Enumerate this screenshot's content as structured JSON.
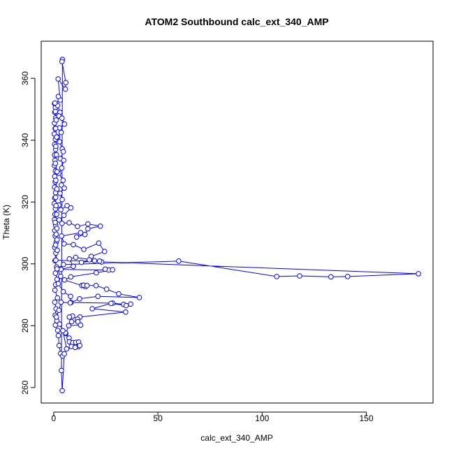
{
  "chart_data": {
    "type": "scatter",
    "title": "ATOM2 Southbound calc_ext_340_AMP",
    "xlabel": "calc_ext_340_AMP",
    "ylabel": "Theta (K)",
    "xlim": [
      -6,
      182
    ],
    "ylim": [
      255,
      372
    ],
    "x_ticks": [
      0,
      50,
      100,
      150
    ],
    "x_tick_labels": [
      "0",
      "50",
      "100",
      "150"
    ],
    "y_ticks": [
      260,
      280,
      300,
      320,
      340,
      360
    ],
    "y_tick_labels": [
      "260",
      "280",
      "300",
      "320",
      "340",
      "360"
    ],
    "grid": false,
    "legend": "none",
    "color": "#0000ff",
    "marker": "open-circle",
    "connected": true,
    "series": [
      {
        "values": [
          [
            0.4,
            351.8
          ],
          [
            0.8,
            350.5
          ],
          [
            0.5,
            349.0
          ],
          [
            0.9,
            347.2
          ],
          [
            0.4,
            345.5
          ],
          [
            0.7,
            343.8
          ],
          [
            0.3,
            342.0
          ],
          [
            0.8,
            340.3
          ],
          [
            0.5,
            338.6
          ],
          [
            0.9,
            337.0
          ],
          [
            0.4,
            335.2
          ],
          [
            0.6,
            333.5
          ],
          [
            0.3,
            331.8
          ],
          [
            0.8,
            330.0
          ],
          [
            0.5,
            328.3
          ],
          [
            0.7,
            326.5
          ],
          [
            0.4,
            324.8
          ],
          [
            0.9,
            323.0
          ],
          [
            0.5,
            321.3
          ],
          [
            0.3,
            319.5
          ],
          [
            0.8,
            317.8
          ],
          [
            0.6,
            316.0
          ],
          [
            0.4,
            314.3
          ],
          [
            0.9,
            312.5
          ],
          [
            0.5,
            310.8
          ],
          [
            0.7,
            309.0
          ],
          [
            1.2,
            307.0
          ],
          [
            0.5,
            305.3
          ],
          [
            1.0,
            303.5
          ],
          [
            0.6,
            301.0
          ],
          [
            1.4,
            299.0
          ],
          [
            0.8,
            297.0
          ],
          [
            1.6,
            295.0
          ],
          [
            0.9,
            293.3
          ],
          [
            0.6,
            291.5
          ],
          [
            1.8,
            289.0
          ],
          [
            0.5,
            287.6
          ],
          [
            1.1,
            285.5
          ],
          [
            0.7,
            283.4
          ],
          [
            1.5,
            281.6
          ],
          [
            0.8,
            280.2
          ],
          [
            1.9,
            278.5
          ],
          [
            2.2,
            276.8
          ],
          [
            2.6,
            273.6
          ],
          [
            3.3,
            271.0
          ],
          [
            4.3,
            270.2
          ],
          [
            5.1,
            270.9
          ],
          [
            4.1,
            259.0
          ],
          [
            3.7,
            265.5
          ],
          [
            4.2,
            366.1
          ],
          [
            4.0,
            365.4
          ],
          [
            5.8,
            358.6
          ],
          [
            5.6,
            356.5
          ],
          [
            2.1,
            359.8
          ],
          [
            3.1,
            353.0
          ],
          [
            2.2,
            354.1
          ],
          [
            1.9,
            351.2
          ],
          [
            3.0,
            349.0
          ],
          [
            2.5,
            347.8
          ],
          [
            4.0,
            347.1
          ],
          [
            5.2,
            345.2
          ],
          [
            2.8,
            344.0
          ],
          [
            3.6,
            342.5
          ],
          [
            1.9,
            341.0
          ],
          [
            2.8,
            339.5
          ],
          [
            4.1,
            337.2
          ],
          [
            4.6,
            336.3
          ],
          [
            3.2,
            334.0
          ],
          [
            4.8,
            333.5
          ],
          [
            3.9,
            331.0
          ],
          [
            2.4,
            329.3
          ],
          [
            4.5,
            327.0
          ],
          [
            3.7,
            325.5
          ],
          [
            5.1,
            324.5
          ],
          [
            3.0,
            322.8
          ],
          [
            4.1,
            320.8
          ],
          [
            2.4,
            319.0
          ],
          [
            3.4,
            317.5
          ],
          [
            6.4,
            318.8
          ],
          [
            8.2,
            318.1
          ],
          [
            4.9,
            315.7
          ],
          [
            2.6,
            314.2
          ],
          [
            4.0,
            313.1
          ],
          [
            7.4,
            313.3
          ],
          [
            11.4,
            312.1
          ],
          [
            16.4,
            312.9
          ],
          [
            22.4,
            312.2
          ],
          [
            16.4,
            311.3
          ],
          [
            15.0,
            309.5
          ],
          [
            11.0,
            308.7
          ],
          [
            12.9,
            310.1
          ],
          [
            3.8,
            309.0
          ],
          [
            5.0,
            306.5
          ],
          [
            9.4,
            306.2
          ],
          [
            14.4,
            304.7
          ],
          [
            21.6,
            306.7
          ],
          [
            24.4,
            304.0
          ],
          [
            18.0,
            302.4
          ],
          [
            17.1,
            301.3
          ],
          [
            13.3,
            300.5
          ],
          [
            19.6,
            301.0
          ],
          [
            23.0,
            300.6
          ],
          [
            22.0,
            300.9
          ],
          [
            10.6,
            302.1
          ],
          [
            7.5,
            301.6
          ],
          [
            9.4,
            299.2
          ],
          [
            3.5,
            298.2
          ],
          [
            26.4,
            298.0
          ],
          [
            24.7,
            298.3
          ],
          [
            28.2,
            298.1
          ],
          [
            20.4,
            297.1
          ],
          [
            8.2,
            295.8
          ],
          [
            5.2,
            294.8
          ],
          [
            13.5,
            293.0
          ],
          [
            15.2,
            292.6
          ],
          [
            14.3,
            293.1
          ],
          [
            16.0,
            293.0
          ],
          [
            20.3,
            293.0
          ],
          [
            25.4,
            291.8
          ],
          [
            31.2,
            290.3
          ],
          [
            41.1,
            289.1
          ],
          [
            21.2,
            289.5
          ],
          [
            12.4,
            288.7
          ],
          [
            8.3,
            287.5
          ],
          [
            28.3,
            287.3
          ],
          [
            33.5,
            286.9
          ],
          [
            36.9,
            287.0
          ],
          [
            34.8,
            286.5
          ],
          [
            27.5,
            287.2
          ],
          [
            18.5,
            285.5
          ],
          [
            34.5,
            284.4
          ],
          [
            12.6,
            282.8
          ],
          [
            11.4,
            282.1
          ],
          [
            9.0,
            283.1
          ],
          [
            7.5,
            282.8
          ],
          [
            8.6,
            281.3
          ],
          [
            11.6,
            281.3
          ],
          [
            12.9,
            280.2
          ],
          [
            7.2,
            280.0
          ],
          [
            5.8,
            277.5
          ],
          [
            7.4,
            276.0
          ],
          [
            5.6,
            277.7
          ],
          [
            7.5,
            274.8
          ],
          [
            9.1,
            274.5
          ],
          [
            10.6,
            274.6
          ],
          [
            12.0,
            274.7
          ],
          [
            11.8,
            273.2
          ],
          [
            12.5,
            273.6
          ],
          [
            8.5,
            273.3
          ],
          [
            10.3,
            273.0
          ],
          [
            6.2,
            272.5
          ],
          [
            4.4,
            278.4
          ],
          [
            2.8,
            280.5
          ],
          [
            1.3,
            282.8
          ],
          [
            2.5,
            285.0
          ],
          [
            3.5,
            287.6
          ],
          [
            7.9,
            287.4
          ],
          [
            8.1,
            289.5
          ],
          [
            4.6,
            291.0
          ],
          [
            2.2,
            293.6
          ],
          [
            3.3,
            296.0
          ],
          [
            1.6,
            298.4
          ],
          [
            4.7,
            299.8
          ],
          [
            60.0,
            300.9
          ],
          [
            107.0,
            295.9
          ],
          [
            118.0,
            296.1
          ],
          [
            133.0,
            295.8
          ],
          [
            141.0,
            295.9
          ],
          [
            175.0,
            296.8
          ],
          [
            1.0,
            301.2
          ],
          [
            1.7,
            304.4
          ],
          [
            0.9,
            306.1
          ],
          [
            1.6,
            307.8
          ],
          [
            1.2,
            309.6
          ],
          [
            1.5,
            311.5
          ],
          [
            0.7,
            313.4
          ],
          [
            1.4,
            316.0
          ],
          [
            1.1,
            318.8
          ],
          [
            0.9,
            321.5
          ],
          [
            1.5,
            324.2
          ],
          [
            1.0,
            327.0
          ],
          [
            1.6,
            329.8
          ],
          [
            0.8,
            332.5
          ],
          [
            1.3,
            335.3
          ],
          [
            1.0,
            338.0
          ],
          [
            1.4,
            341.0
          ],
          [
            0.9,
            343.8
          ],
          [
            1.2,
            346.5
          ],
          [
            0.8,
            349.3
          ],
          [
            0.6,
            352.0
          ]
        ]
      }
    ]
  }
}
